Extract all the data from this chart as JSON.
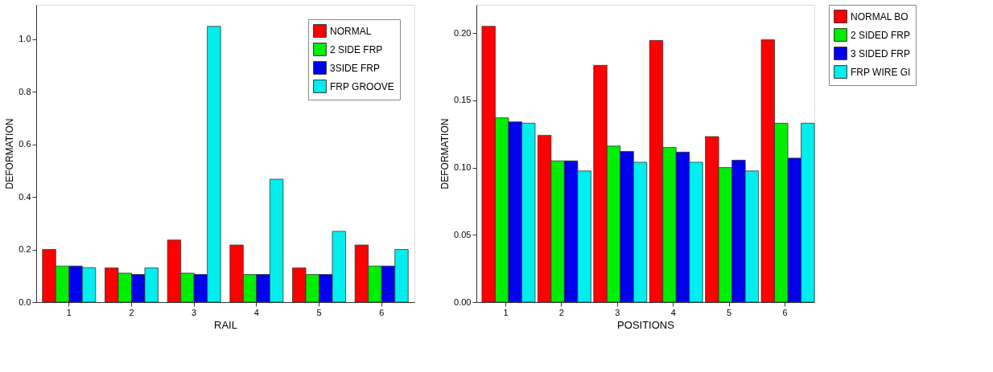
{
  "chart_data": [
    {
      "type": "bar",
      "xlabel": "RAIL",
      "ylabel": "DEFORMATION",
      "categories": [
        "1",
        "2",
        "3",
        "4",
        "5",
        "6"
      ],
      "series": [
        {
          "name": "NORMAL",
          "color": "#ff0000",
          "values": [
            0.2,
            0.13,
            0.236,
            0.217,
            0.13,
            0.217
          ]
        },
        {
          "name": "2 SIDE FRP",
          "color": "#00ee00",
          "values": [
            0.137,
            0.11,
            0.11,
            0.105,
            0.105,
            0.137
          ]
        },
        {
          "name": "3SIDE FRP",
          "color": "#0000ee",
          "values": [
            0.137,
            0.105,
            0.105,
            0.105,
            0.105,
            0.137
          ]
        },
        {
          "name": "FRP GROOVE",
          "color": "#00eeee",
          "values": [
            0.131,
            0.13,
            1.048,
            0.467,
            0.269,
            0.2
          ]
        }
      ],
      "ylim": [
        0,
        1.13
      ],
      "yticks": [
        {
          "value": 0,
          "label": "0.0"
        },
        0.2,
        0.4,
        0.6,
        0.8,
        {
          "value": 1,
          "label": "1.0"
        }
      ],
      "grid": false,
      "legend": "top right"
    },
    {
      "type": "bar",
      "xlabel": "POSITIONS",
      "ylabel": "DEFORMATION",
      "categories": [
        "1",
        "2",
        "3",
        "4",
        "5",
        "6"
      ],
      "series": [
        {
          "name": "NORMAL BO",
          "color": "#ff0000",
          "values": [
            0.205,
            0.124,
            0.176,
            0.1945,
            0.123,
            0.195
          ]
        },
        {
          "name": "2 SIDED FRP",
          "color": "#00ee00",
          "values": [
            0.137,
            0.105,
            0.116,
            0.115,
            0.1,
            0.133
          ]
        },
        {
          "name": "3 SIDED FRP",
          "color": "#0000ee",
          "values": [
            0.134,
            0.105,
            0.112,
            0.1115,
            0.1055,
            0.107
          ]
        },
        {
          "name": "FRP WIRE GI",
          "color": "#00eeee",
          "values": [
            0.133,
            0.0975,
            0.104,
            0.104,
            0.0975,
            0.133
          ]
        }
      ],
      "ylim": [
        0,
        0.221
      ],
      "yticks": [
        {
          "value": 0,
          "label": "0.00"
        },
        0.05,
        {
          "value": 0.1,
          "label": "0.10"
        },
        0.15,
        {
          "value": 0.2,
          "label": "0.20"
        }
      ],
      "grid": false,
      "legend": "right"
    }
  ]
}
